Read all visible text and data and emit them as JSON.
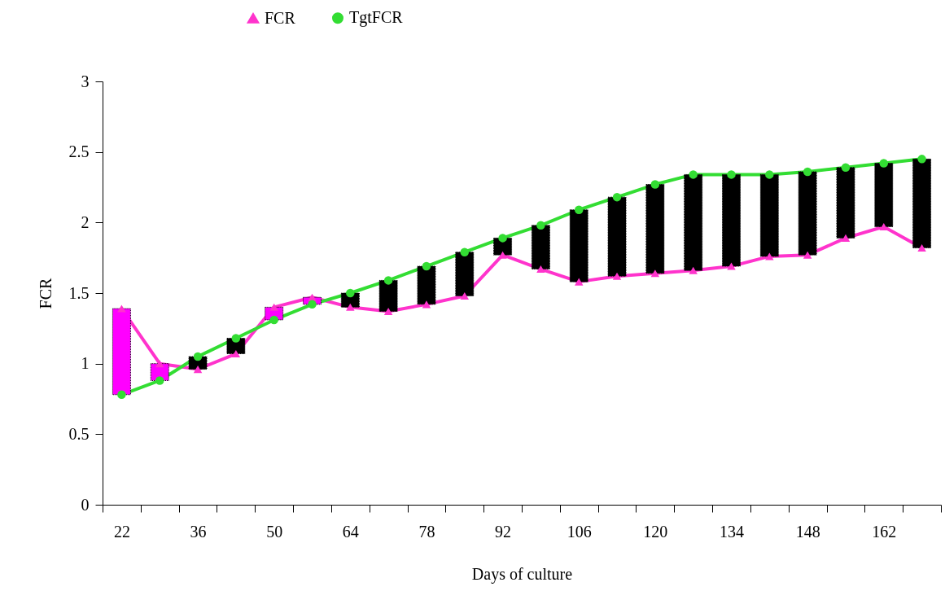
{
  "chart_data": {
    "type": "line",
    "xlabel": "Days of culture",
    "ylabel": "FCR",
    "categories": [
      "22",
      null,
      "36",
      null,
      "50",
      null,
      "64",
      null,
      "78",
      null,
      "92",
      null,
      "106",
      null,
      "120",
      null,
      "134",
      null,
      "148",
      null,
      "162",
      null
    ],
    "ylim": [
      0,
      3
    ],
    "yticks": [
      0,
      0.5,
      1,
      1.5,
      2,
      2.5,
      3
    ],
    "grid": false,
    "legend": "top",
    "series": [
      {
        "name": "FCR",
        "color": "#ff33cc",
        "marker": "triangle",
        "values": [
          1.39,
          1.0,
          0.96,
          1.07,
          1.4,
          1.47,
          1.4,
          1.37,
          1.42,
          1.48,
          1.77,
          1.67,
          1.58,
          1.62,
          1.64,
          1.66,
          1.69,
          1.76,
          1.77,
          1.89,
          1.97,
          1.82
        ]
      },
      {
        "name": "TgtFCR",
        "color": "#33dd33",
        "marker": "circle",
        "values": [
          0.78,
          0.88,
          1.05,
          1.18,
          1.31,
          1.42,
          1.5,
          1.59,
          1.69,
          1.79,
          1.89,
          1.98,
          2.09,
          2.18,
          2.27,
          2.34,
          2.34,
          2.34,
          2.36,
          2.39,
          2.42,
          2.45
        ]
      },
      {
        "type": "bar",
        "base": [
          1.39,
          1.0,
          0.96,
          1.07,
          1.4,
          1.47,
          1.4,
          1.37,
          1.42,
          1.48,
          1.77,
          1.67,
          1.58,
          1.62,
          1.64,
          1.66,
          1.69,
          1.76,
          1.77,
          1.89,
          1.97,
          1.82
        ],
        "values": [
          -0.61,
          -0.12,
          0.09,
          0.11,
          -0.09,
          -0.05,
          0.1,
          0.22,
          0.27,
          0.31,
          0.12,
          0.31,
          0.51,
          0.56,
          0.63,
          0.68,
          0.65,
          0.58,
          0.59,
          0.5,
          0.45,
          0.63
        ],
        "colors": [
          "#ff00ff",
          "#ff00ff",
          "#000000",
          "#000000",
          "#ff00ff",
          "#ff00ff",
          "#000000",
          "#000000",
          "#000000",
          "#000000",
          "#000000",
          "#000000",
          "#000000",
          "#000000",
          "#000000",
          "#000000",
          "#000000",
          "#000000",
          "#000000",
          "#000000",
          "#000000",
          "#000000"
        ]
      }
    ]
  }
}
